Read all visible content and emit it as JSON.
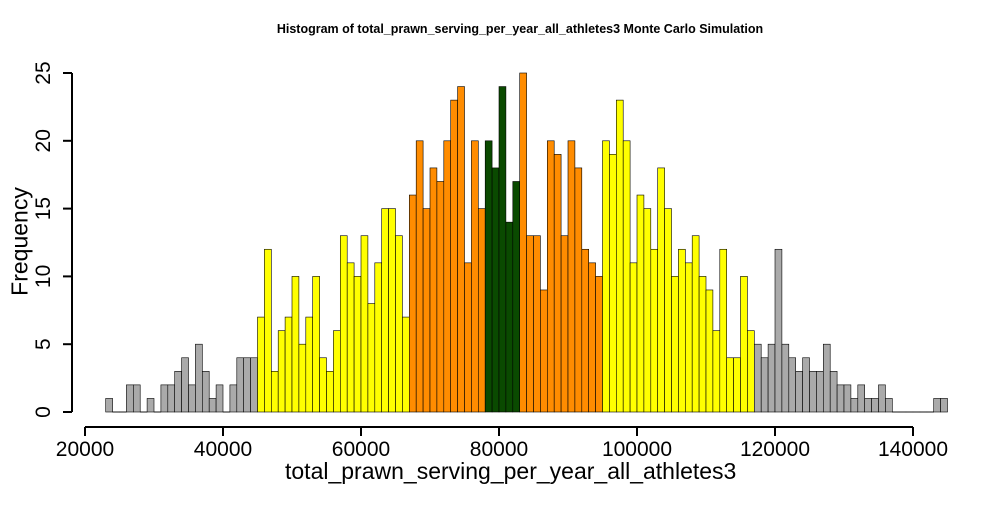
{
  "chart_data": {
    "type": "bar",
    "title": "Histogram of  total_prawn_serving_per_year_all_athletes3  Monte Carlo Simulation",
    "xlabel": "total_prawn_serving_per_year_all_athletes3",
    "ylabel": "Frequency",
    "xlim": [
      20000,
      144000
    ],
    "ylim": [
      0,
      25
    ],
    "xticks": [
      20000,
      40000,
      60000,
      80000,
      100000,
      120000,
      140000
    ],
    "yticks": [
      0,
      5,
      10,
      15,
      20,
      25
    ],
    "bin_start": 23000,
    "bin_width": 1000,
    "values": [
      1,
      0,
      0,
      2,
      2,
      0,
      1,
      0,
      2,
      2,
      3,
      4,
      2,
      5,
      3,
      1,
      2,
      0,
      2,
      4,
      4,
      4,
      7,
      12,
      3,
      6,
      7,
      10,
      5,
      7,
      10,
      4,
      3,
      6,
      13,
      11,
      10,
      13,
      8,
      11,
      15,
      15,
      13,
      7,
      16,
      20,
      15,
      18,
      17,
      20,
      23,
      24,
      11,
      20,
      15,
      20,
      18,
      24,
      14,
      17,
      25,
      13,
      13,
      9,
      20,
      19,
      13,
      20,
      18,
      12,
      11,
      10,
      20,
      19,
      23,
      20,
      11,
      16,
      15,
      12,
      18,
      15,
      10,
      12,
      11,
      13,
      10,
      9,
      6,
      12,
      4,
      4,
      10,
      6,
      5,
      4,
      5,
      12,
      5,
      4,
      3,
      4,
      3,
      3,
      5,
      3,
      2,
      2,
      1,
      2,
      1,
      1,
      2,
      1,
      0,
      0,
      0,
      0,
      0,
      0,
      1,
      1
    ],
    "color_bands": [
      {
        "from": 23000,
        "to": 45000,
        "color": "#aaaaaa"
      },
      {
        "from": 45000,
        "to": 67000,
        "color": "#ffff00"
      },
      {
        "from": 67000,
        "to": 78000,
        "color": "#ff8c00"
      },
      {
        "from": 78000,
        "to": 83000,
        "color": "#0a4a00"
      },
      {
        "from": 83000,
        "to": 95000,
        "color": "#ff8c00"
      },
      {
        "from": 95000,
        "to": 117000,
        "color": "#ffff00"
      },
      {
        "from": 117000,
        "to": 144000,
        "color": "#aaaaaa"
      }
    ],
    "grid": false,
    "legend": "none"
  }
}
